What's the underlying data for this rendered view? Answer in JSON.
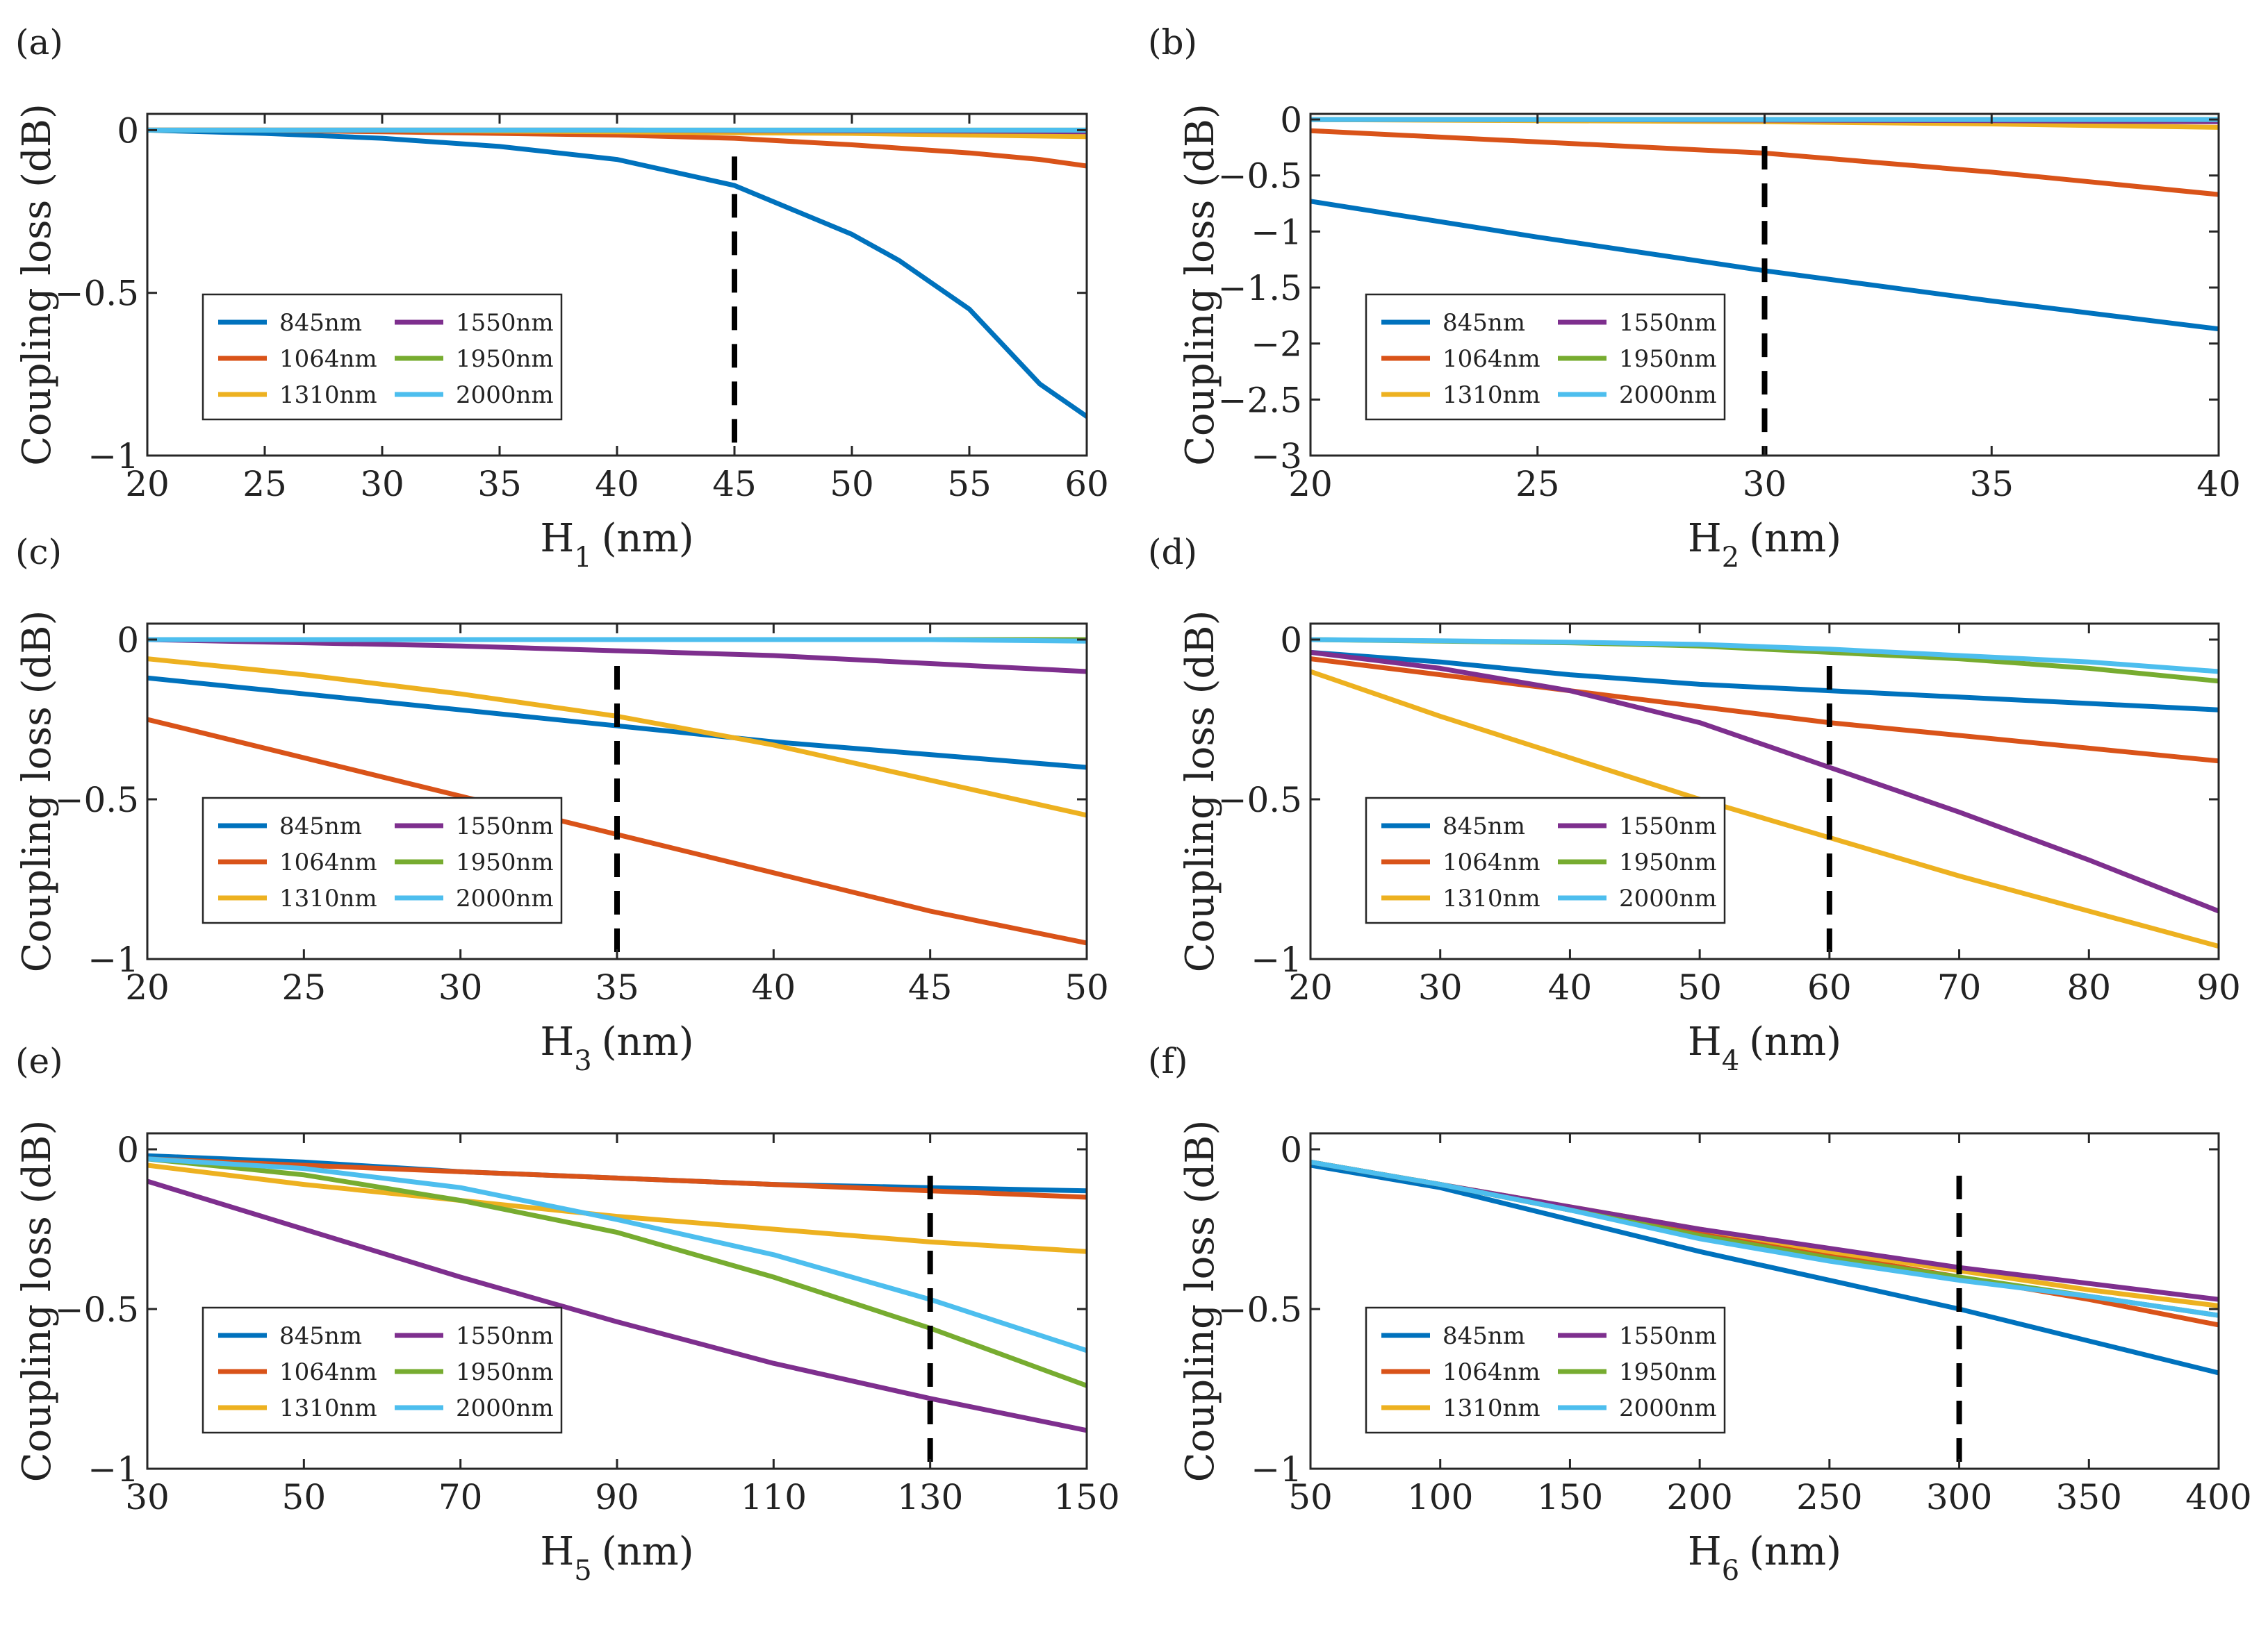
{
  "series_colors": {
    "845nm": "#0072BD",
    "1064nm": "#D95319",
    "1310nm": "#EDB120",
    "1550nm": "#7E2F8E",
    "1950nm": "#77AC30",
    "2000nm": "#4DBEEE"
  },
  "marker_color": "#000000",
  "chart_data": [
    {
      "panel": "(a)",
      "type": "line",
      "title": "",
      "xlabel": "H",
      "xlabel_sub": "1",
      "xlabel_unit": "(nm)",
      "ylabel": "Coupling loss (dB)",
      "xlim": [
        20,
        60
      ],
      "ylim": [
        -1,
        0.05
      ],
      "xticks": [
        20,
        25,
        30,
        35,
        40,
        45,
        50,
        55,
        60
      ],
      "xtick_labels": [
        "20",
        "25",
        "30",
        "35",
        "40",
        "45",
        "50",
        "55",
        "60"
      ],
      "yticks": [
        0,
        -0.5,
        -1
      ],
      "ytick_labels": [
        "0",
        "−0.5",
        "−1"
      ],
      "marker_x": 45,
      "legend_position": "bottom-left",
      "x": [
        20,
        25,
        30,
        35,
        40,
        45,
        50,
        52,
        55,
        58,
        60
      ],
      "series": [
        {
          "name": "845nm",
          "values": [
            0,
            -0.01,
            -0.025,
            -0.05,
            -0.09,
            -0.17,
            -0.32,
            -0.4,
            -0.55,
            -0.78,
            -0.88
          ]
        },
        {
          "name": "1064nm",
          "values": [
            0,
            0,
            -0.005,
            -0.01,
            -0.015,
            -0.025,
            -0.045,
            -0.055,
            -0.07,
            -0.09,
            -0.11
          ]
        },
        {
          "name": "1310nm",
          "values": [
            0,
            0,
            0,
            -0.003,
            -0.005,
            -0.008,
            -0.01,
            -0.012,
            -0.015,
            -0.018,
            -0.02
          ]
        },
        {
          "name": "1550nm",
          "values": [
            0,
            0,
            0,
            0,
            0,
            -0.001,
            -0.002,
            -0.002,
            -0.003,
            -0.004,
            -0.005
          ]
        },
        {
          "name": "1950nm",
          "values": [
            0,
            0,
            0,
            0,
            0,
            0,
            0,
            0,
            0,
            0,
            0
          ]
        },
        {
          "name": "2000nm",
          "values": [
            0,
            0,
            0,
            0,
            0,
            0,
            0,
            0,
            0,
            0,
            0
          ]
        }
      ]
    },
    {
      "panel": "(b)",
      "type": "line",
      "title": "",
      "xlabel": "H",
      "xlabel_sub": "2",
      "xlabel_unit": "(nm)",
      "ylabel": "Coupling loss (dB)",
      "xlim": [
        20,
        40
      ],
      "ylim": [
        -3,
        0.05
      ],
      "xticks": [
        20,
        25,
        30,
        35,
        40
      ],
      "xtick_labels": [
        "20",
        "25",
        "30",
        "35",
        "40"
      ],
      "yticks": [
        0,
        -0.5,
        -1,
        -1.5,
        -2,
        -2.5,
        -3
      ],
      "ytick_labels": [
        "0",
        "−0.5",
        "−1",
        "−1.5",
        "−2",
        "−2.5",
        "−3"
      ],
      "marker_x": 30,
      "legend_position": "bottom-left",
      "x": [
        20,
        25,
        30,
        35,
        40
      ],
      "series": [
        {
          "name": "845nm",
          "values": [
            -0.73,
            -1.05,
            -1.35,
            -1.62,
            -1.87
          ]
        },
        {
          "name": "1064nm",
          "values": [
            -0.1,
            -0.2,
            -0.3,
            -0.47,
            -0.67
          ]
        },
        {
          "name": "1310nm",
          "values": [
            0,
            -0.01,
            -0.02,
            -0.04,
            -0.07
          ]
        },
        {
          "name": "1550nm",
          "values": [
            0,
            0,
            -0.005,
            -0.01,
            -0.02
          ]
        },
        {
          "name": "1950nm",
          "values": [
            0,
            0,
            0,
            0,
            0
          ]
        },
        {
          "name": "2000nm",
          "values": [
            0,
            0,
            0,
            0,
            0
          ]
        }
      ]
    },
    {
      "panel": "(c)",
      "type": "line",
      "title": "",
      "xlabel": "H",
      "xlabel_sub": "3",
      "xlabel_unit": "(nm)",
      "ylabel": "Coupling loss (dB)",
      "xlim": [
        20,
        50
      ],
      "ylim": [
        -1,
        0.05
      ],
      "xticks": [
        20,
        25,
        30,
        35,
        40,
        45,
        50
      ],
      "xtick_labels": [
        "20",
        "25",
        "30",
        "35",
        "40",
        "45",
        "50"
      ],
      "yticks": [
        0,
        -0.5,
        -1
      ],
      "ytick_labels": [
        "0",
        "−0.5",
        "−1"
      ],
      "marker_x": 35,
      "legend_position": "bottom-left",
      "x": [
        20,
        25,
        30,
        35,
        40,
        45,
        50
      ],
      "series": [
        {
          "name": "845nm",
          "values": [
            -0.12,
            -0.17,
            -0.22,
            -0.27,
            -0.32,
            -0.36,
            -0.4
          ]
        },
        {
          "name": "1064nm",
          "values": [
            -0.25,
            -0.37,
            -0.49,
            -0.61,
            -0.73,
            -0.85,
            -0.95
          ]
        },
        {
          "name": "1310nm",
          "values": [
            -0.06,
            -0.11,
            -0.17,
            -0.24,
            -0.33,
            -0.44,
            -0.55
          ]
        },
        {
          "name": "1550nm",
          "values": [
            0,
            -0.01,
            -0.02,
            -0.035,
            -0.05,
            -0.075,
            -0.1
          ]
        },
        {
          "name": "1950nm",
          "values": [
            0,
            0,
            0,
            0,
            0,
            0,
            0
          ]
        },
        {
          "name": "2000nm",
          "values": [
            0,
            0,
            0,
            0,
            0,
            0,
            -0.005
          ]
        }
      ]
    },
    {
      "panel": "(d)",
      "type": "line",
      "title": "",
      "xlabel": "H",
      "xlabel_sub": "4",
      "xlabel_unit": "(nm)",
      "ylabel": "Coupling loss (dB)",
      "xlim": [
        20,
        90
      ],
      "ylim": [
        -1,
        0.05
      ],
      "xticks": [
        20,
        30,
        40,
        50,
        60,
        70,
        80,
        90
      ],
      "xtick_labels": [
        "20",
        "30",
        "40",
        "50",
        "60",
        "70",
        "80",
        "90"
      ],
      "yticks": [
        0,
        -0.5,
        -1
      ],
      "ytick_labels": [
        "0",
        "−0.5",
        "−1"
      ],
      "marker_x": 60,
      "legend_position": "bottom-left",
      "x": [
        20,
        30,
        40,
        50,
        60,
        70,
        80,
        90
      ],
      "series": [
        {
          "name": "845nm",
          "values": [
            -0.04,
            -0.07,
            -0.11,
            -0.14,
            -0.16,
            -0.18,
            -0.2,
            -0.22
          ]
        },
        {
          "name": "1064nm",
          "values": [
            -0.06,
            -0.11,
            -0.16,
            -0.21,
            -0.26,
            -0.3,
            -0.34,
            -0.38
          ]
        },
        {
          "name": "1310nm",
          "values": [
            -0.1,
            -0.24,
            -0.37,
            -0.5,
            -0.62,
            -0.74,
            -0.85,
            -0.96
          ]
        },
        {
          "name": "1550nm",
          "values": [
            -0.04,
            -0.09,
            -0.16,
            -0.26,
            -0.4,
            -0.54,
            -0.69,
            -0.85
          ]
        },
        {
          "name": "1950nm",
          "values": [
            0,
            -0.005,
            -0.01,
            -0.02,
            -0.04,
            -0.06,
            -0.09,
            -0.13
          ]
        },
        {
          "name": "2000nm",
          "values": [
            0,
            -0.004,
            -0.008,
            -0.015,
            -0.03,
            -0.05,
            -0.07,
            -0.1
          ]
        }
      ]
    },
    {
      "panel": "(e)",
      "type": "line",
      "title": "",
      "xlabel": "H",
      "xlabel_sub": "5",
      "xlabel_unit": "(nm)",
      "ylabel": "Coupling loss (dB)",
      "xlim": [
        30,
        150
      ],
      "ylim": [
        -1,
        0.05
      ],
      "xticks": [
        30,
        50,
        70,
        90,
        110,
        130,
        150
      ],
      "xtick_labels": [
        "30",
        "50",
        "70",
        "90",
        "110",
        "130",
        "150"
      ],
      "yticks": [
        0,
        -0.5,
        -1
      ],
      "ytick_labels": [
        "0",
        "−0.5",
        "−1"
      ],
      "marker_x": 130,
      "legend_position": "bottom-left",
      "x": [
        30,
        50,
        70,
        90,
        110,
        130,
        150
      ],
      "series": [
        {
          "name": "845nm",
          "values": [
            -0.02,
            -0.04,
            -0.07,
            -0.09,
            -0.11,
            -0.12,
            -0.13
          ]
        },
        {
          "name": "1064nm",
          "values": [
            -0.03,
            -0.05,
            -0.07,
            -0.09,
            -0.11,
            -0.13,
            -0.15
          ]
        },
        {
          "name": "1310nm",
          "values": [
            -0.05,
            -0.11,
            -0.16,
            -0.21,
            -0.25,
            -0.29,
            -0.32
          ]
        },
        {
          "name": "1550nm",
          "values": [
            -0.1,
            -0.25,
            -0.4,
            -0.54,
            -0.67,
            -0.78,
            -0.88
          ]
        },
        {
          "name": "1950nm",
          "values": [
            -0.03,
            -0.08,
            -0.16,
            -0.26,
            -0.4,
            -0.56,
            -0.74
          ]
        },
        {
          "name": "2000nm",
          "values": [
            -0.03,
            -0.06,
            -0.12,
            -0.22,
            -0.33,
            -0.47,
            -0.63
          ]
        }
      ]
    },
    {
      "panel": "(f)",
      "type": "line",
      "title": "",
      "xlabel": "H",
      "xlabel_sub": "6",
      "xlabel_unit": "(nm)",
      "ylabel": "Coupling loss (dB)",
      "xlim": [
        50,
        400
      ],
      "ylim": [
        -1,
        0.05
      ],
      "xticks": [
        50,
        100,
        150,
        200,
        250,
        300,
        350,
        400
      ],
      "xtick_labels": [
        "50",
        "100",
        "150",
        "200",
        "250",
        "300",
        "350",
        "400"
      ],
      "yticks": [
        0,
        -0.5,
        -1
      ],
      "ytick_labels": [
        "0",
        "−0.5",
        "−1"
      ],
      "marker_x": 300,
      "legend_position": "bottom-left",
      "x": [
        50,
        100,
        150,
        200,
        250,
        300,
        350,
        400
      ],
      "series": [
        {
          "name": "845nm",
          "values": [
            -0.05,
            -0.12,
            -0.22,
            -0.32,
            -0.41,
            -0.5,
            -0.6,
            -0.7
          ]
        },
        {
          "name": "1064nm",
          "values": [
            -0.04,
            -0.11,
            -0.19,
            -0.26,
            -0.33,
            -0.4,
            -0.47,
            -0.55
          ]
        },
        {
          "name": "1310nm",
          "values": [
            -0.04,
            -0.11,
            -0.18,
            -0.25,
            -0.32,
            -0.38,
            -0.44,
            -0.49
          ]
        },
        {
          "name": "1550nm",
          "values": [
            -0.04,
            -0.11,
            -0.18,
            -0.25,
            -0.31,
            -0.37,
            -0.42,
            -0.47
          ]
        },
        {
          "name": "1950nm",
          "values": [
            -0.04,
            -0.11,
            -0.19,
            -0.27,
            -0.34,
            -0.4,
            -0.46,
            -0.52
          ]
        },
        {
          "name": "2000nm",
          "values": [
            -0.04,
            -0.11,
            -0.19,
            -0.28,
            -0.35,
            -0.41,
            -0.46,
            -0.52
          ]
        }
      ]
    }
  ]
}
